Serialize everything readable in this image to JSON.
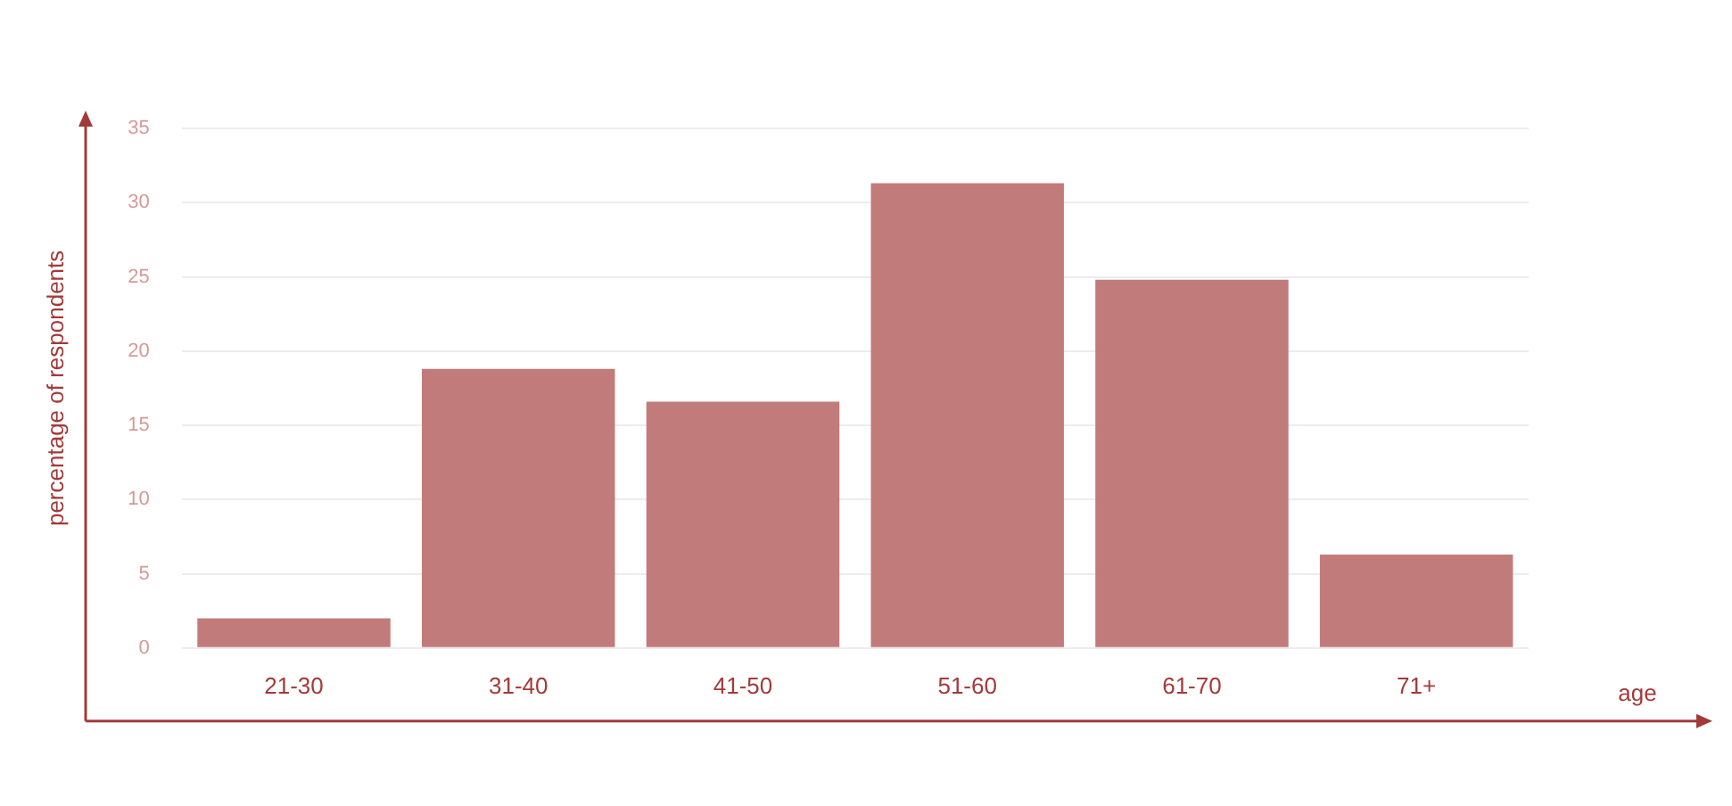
{
  "chart_data": {
    "type": "bar",
    "xlabel": "age",
    "ylabel": "percentage of respondents",
    "categories": [
      "21-30",
      "31-40",
      "41-50",
      "51-60",
      "61-70",
      "71+"
    ],
    "values": [
      2.0,
      18.8,
      16.6,
      31.3,
      24.8,
      6.3
    ],
    "color": "#c27b7b",
    "ylim": [
      0,
      35
    ],
    "yticks": [
      0,
      5,
      10,
      15,
      20,
      25,
      30,
      35
    ],
    "grid": "y",
    "legend": false
  }
}
